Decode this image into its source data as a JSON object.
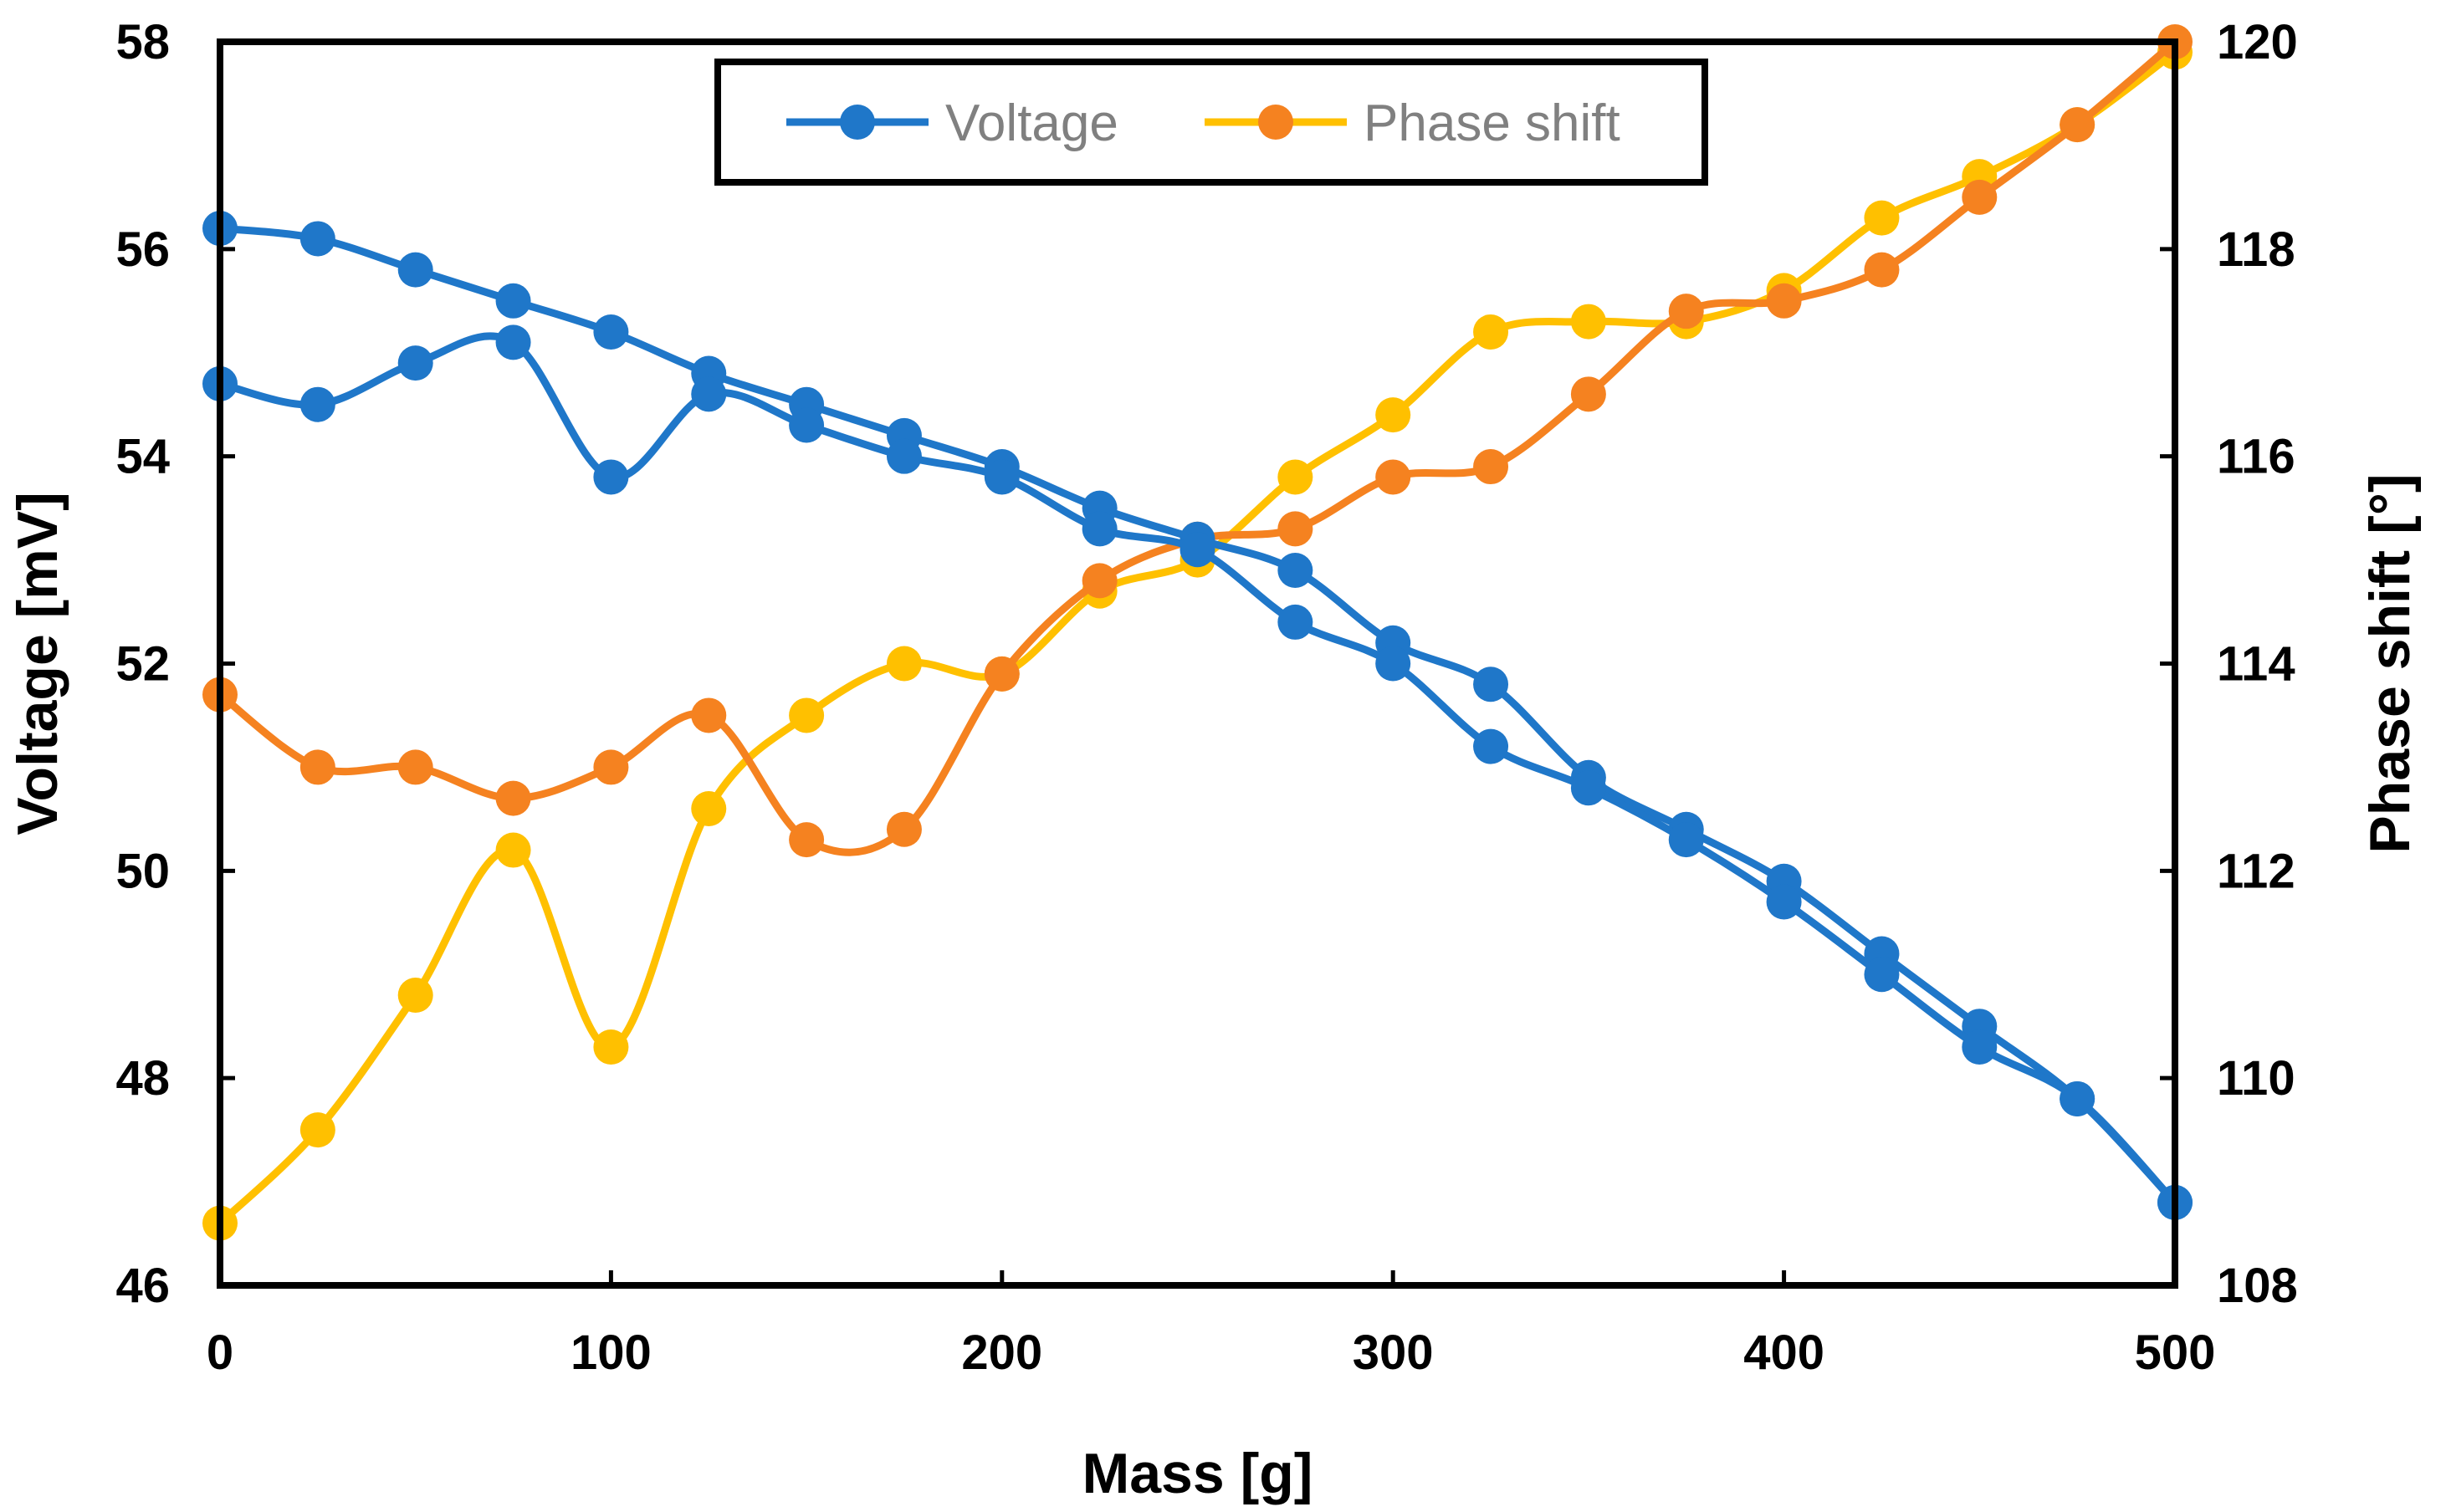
{
  "chart_data": {
    "type": "line",
    "title": "",
    "xlabel": "Mass [g]",
    "ylabel": "Voltage [mV]",
    "y2label": "Phase shift [°]",
    "xlim": [
      0,
      500
    ],
    "ylim": [
      46,
      58
    ],
    "y2lim": [
      108,
      120
    ],
    "xticks": [
      0,
      100,
      200,
      300,
      400,
      500
    ],
    "yticks": [
      46,
      48,
      50,
      52,
      54,
      56,
      58
    ],
    "y2ticks": [
      108,
      110,
      112,
      114,
      116,
      118,
      120
    ],
    "grid": false,
    "legend_position": "top-center",
    "legend": [
      "Voltage",
      "Phase shift"
    ],
    "series": [
      {
        "name": "Voltage",
        "axis": "left",
        "color": "#1f77c9",
        "in_legend": true,
        "points": [
          [
            0,
            56.2
          ],
          [
            25,
            56.1
          ],
          [
            50,
            55.8
          ],
          [
            75,
            55.5
          ],
          [
            100,
            55.2
          ],
          [
            125,
            54.8
          ],
          [
            150,
            54.5
          ],
          [
            175,
            54.2
          ],
          [
            200,
            53.9
          ],
          [
            225,
            53.5
          ],
          [
            250,
            53.2
          ],
          [
            275,
            52.9
          ],
          [
            300,
            52.2
          ],
          [
            325,
            51.8
          ],
          [
            350,
            50.9
          ],
          [
            375,
            50.4
          ],
          [
            400,
            49.9
          ],
          [
            425,
            49.2
          ],
          [
            450,
            48.5
          ],
          [
            475,
            47.8
          ],
          [
            500,
            46.8
          ]
        ]
      },
      {
        "name": "Voltage",
        "axis": "left",
        "color": "#1f77c9",
        "in_legend": false,
        "points": [
          [
            0,
            54.7
          ],
          [
            25,
            54.5
          ],
          [
            50,
            54.9
          ],
          [
            75,
            55.1
          ],
          [
            100,
            53.8
          ],
          [
            125,
            54.6
          ],
          [
            150,
            54.3
          ],
          [
            175,
            54.0
          ],
          [
            200,
            53.8
          ],
          [
            225,
            53.3
          ],
          [
            250,
            53.1
          ],
          [
            275,
            52.4
          ],
          [
            300,
            52.0
          ],
          [
            325,
            51.2
          ],
          [
            350,
            50.8
          ],
          [
            375,
            50.3
          ],
          [
            400,
            49.7
          ],
          [
            425,
            49.0
          ],
          [
            450,
            48.3
          ],
          [
            475,
            47.8
          ],
          [
            500,
            46.8
          ]
        ]
      },
      {
        "name": "Phase shift",
        "axis": "right",
        "color": "#ffc000",
        "in_legend": false,
        "points": [
          [
            0,
            108.6
          ],
          [
            25,
            109.5
          ],
          [
            50,
            110.8
          ],
          [
            75,
            112.2
          ],
          [
            100,
            110.3
          ],
          [
            125,
            112.6
          ],
          [
            150,
            113.5
          ],
          [
            175,
            114.0
          ],
          [
            200,
            113.9
          ],
          [
            225,
            114.7
          ],
          [
            250,
            115.0
          ],
          [
            275,
            115.8
          ],
          [
            300,
            116.4
          ],
          [
            325,
            117.2
          ],
          [
            350,
            117.3
          ],
          [
            375,
            117.3
          ],
          [
            400,
            117.6
          ],
          [
            425,
            118.3
          ],
          [
            450,
            118.7
          ],
          [
            475,
            119.2
          ],
          [
            500,
            119.9
          ]
        ]
      },
      {
        "name": "Phase shift",
        "axis": "right",
        "color": "#f58220",
        "in_legend": true,
        "points": [
          [
            0,
            113.7
          ],
          [
            25,
            113.0
          ],
          [
            50,
            113.0
          ],
          [
            75,
            112.7
          ],
          [
            100,
            113.0
          ],
          [
            125,
            113.5
          ],
          [
            150,
            112.3
          ],
          [
            175,
            112.4
          ],
          [
            200,
            113.9
          ],
          [
            225,
            114.8
          ],
          [
            250,
            115.2
          ],
          [
            275,
            115.3
          ],
          [
            300,
            115.8
          ],
          [
            325,
            115.9
          ],
          [
            350,
            116.6
          ],
          [
            375,
            117.4
          ],
          [
            400,
            117.5
          ],
          [
            425,
            117.8
          ],
          [
            450,
            118.5
          ],
          [
            475,
            119.2
          ],
          [
            500,
            120.0
          ]
        ]
      }
    ]
  },
  "legend_colors": {
    "Voltage": "#1f77c9",
    "Phase shift": "#f58220",
    "Phase shift line": "#ffc000"
  }
}
